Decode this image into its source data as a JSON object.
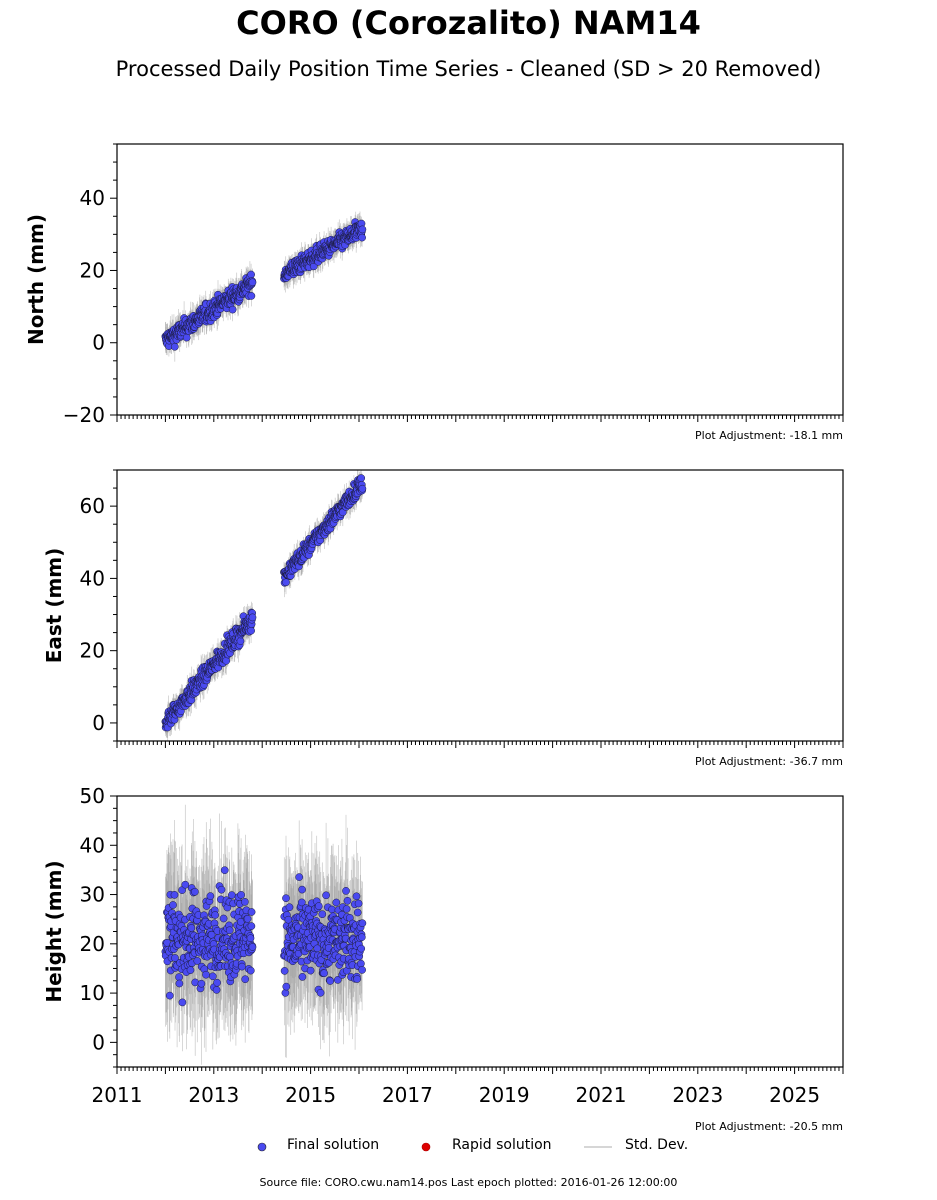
{
  "title": "CORO (Corozalito) NAM14",
  "subtitle": "Processed Daily Position Time Series - Cleaned (SD > 20 Removed)",
  "source_text": "Source file: CORO.cwu.nam14.pos  Last epoch plotted: 2016-01-26 12:00:00",
  "legend": {
    "final": "Final solution",
    "rapid": "Rapid solution",
    "std": "Std. Dev."
  },
  "colors": {
    "final": "#4a4af0",
    "rapid": "#dd0000",
    "std": "#b0b0b0"
  },
  "chart_data": [
    {
      "type": "scatter",
      "ylabel": "North (mm)",
      "xlim": [
        2011,
        2026
      ],
      "ylim": [
        -20,
        55
      ],
      "yticks": [
        -20,
        0,
        20,
        40
      ],
      "adjustment": "Plot Adjustment: -18.1 mm",
      "segments": [
        {
          "x_start": 2012.0,
          "x_end": 2013.8,
          "y_start": 0.5,
          "y_end": 16.5,
          "scatter": 1.8
        },
        {
          "x_start": 2014.45,
          "x_end": 2016.07,
          "y_start": 19.0,
          "y_end": 31.5,
          "scatter": 1.6
        }
      ]
    },
    {
      "type": "scatter",
      "ylabel": "East (mm)",
      "xlim": [
        2011,
        2026
      ],
      "ylim": [
        -5,
        70
      ],
      "yticks": [
        0,
        20,
        40,
        60
      ],
      "adjustment": "Plot Adjustment: -36.7 mm",
      "segments": [
        {
          "x_start": 2012.0,
          "x_end": 2013.8,
          "y_start": 0.0,
          "y_end": 29.0,
          "scatter": 1.8
        },
        {
          "x_start": 2014.45,
          "x_end": 2016.07,
          "y_start": 40.5,
          "y_end": 66.5,
          "scatter": 1.6
        }
      ]
    },
    {
      "type": "scatter",
      "ylabel": "Height (mm)",
      "xlim": [
        2011,
        2026
      ],
      "ylim": [
        -5,
        50
      ],
      "yticks": [
        0,
        10,
        20,
        30,
        40,
        50
      ],
      "xticks": [
        2011,
        2013,
        2015,
        2017,
        2019,
        2021,
        2023,
        2025
      ],
      "adjustment": "Plot Adjustment: -20.5 mm",
      "segments": [
        {
          "x_start": 2012.0,
          "x_end": 2013.8,
          "y_start": 20.5,
          "y_end": 22.0,
          "scatter": 6.5
        },
        {
          "x_start": 2014.45,
          "x_end": 2016.07,
          "y_start": 20.5,
          "y_end": 21.0,
          "scatter": 6.0
        }
      ]
    }
  ]
}
